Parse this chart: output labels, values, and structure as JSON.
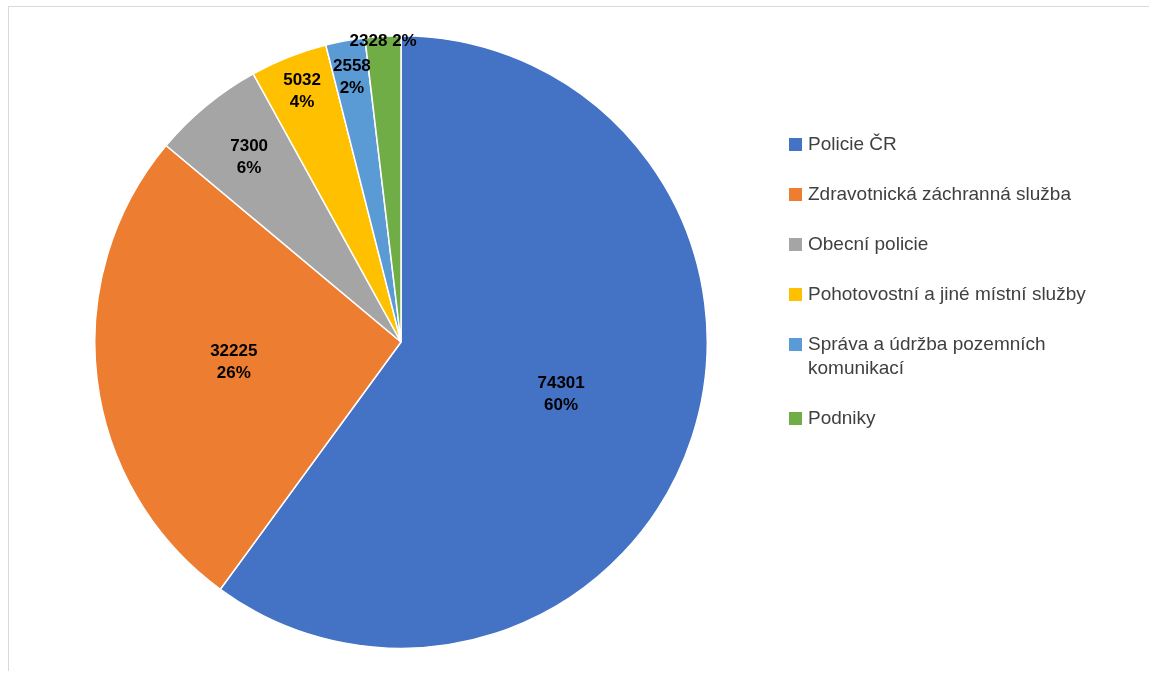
{
  "chart_data": {
    "type": "pie",
    "categories": [
      "Policie ČR",
      "Zdravotnická záchranná služba",
      "Obecní policie",
      "Pohotovostní a jiné místní služby",
      "Správa a údržba pozemních komunikací",
      "Podniky"
    ],
    "values": [
      74301,
      32225,
      7300,
      5032,
      2558,
      2328
    ],
    "colors": [
      "#4472c4",
      "#ed7d31",
      "#a5a5a5",
      "#ffc000",
      "#5b9bd5",
      "#70ad47"
    ],
    "value_labels": [
      "74301\n60%",
      "32225\n26%",
      "7300\n6%",
      "5032\n4%",
      "2558\n2%",
      "2328 2%"
    ],
    "legend": "right"
  }
}
